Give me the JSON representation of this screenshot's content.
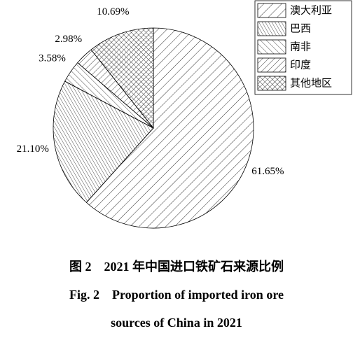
{
  "chart_data": {
    "type": "pie",
    "categories": [
      "澳大利亚",
      "巴西",
      "南非",
      "印度",
      "其他地区"
    ],
    "values": [
      61.65,
      21.1,
      3.58,
      2.98,
      10.69
    ],
    "value_labels": [
      "61.65%",
      "21.10%",
      "3.58%",
      "2.98%",
      "10.69%"
    ],
    "hatches": [
      "fwd-wide",
      "back-dense",
      "back-wide",
      "fwd-mid",
      "cross"
    ],
    "color": "#000000",
    "legend": "top-right"
  },
  "caption": {
    "zh": "图 2　2021 年中国进口铁矿石来源比例",
    "en": [
      "Fig. 2　Proportion of imported iron ore",
      "sources of China in 2021"
    ]
  }
}
